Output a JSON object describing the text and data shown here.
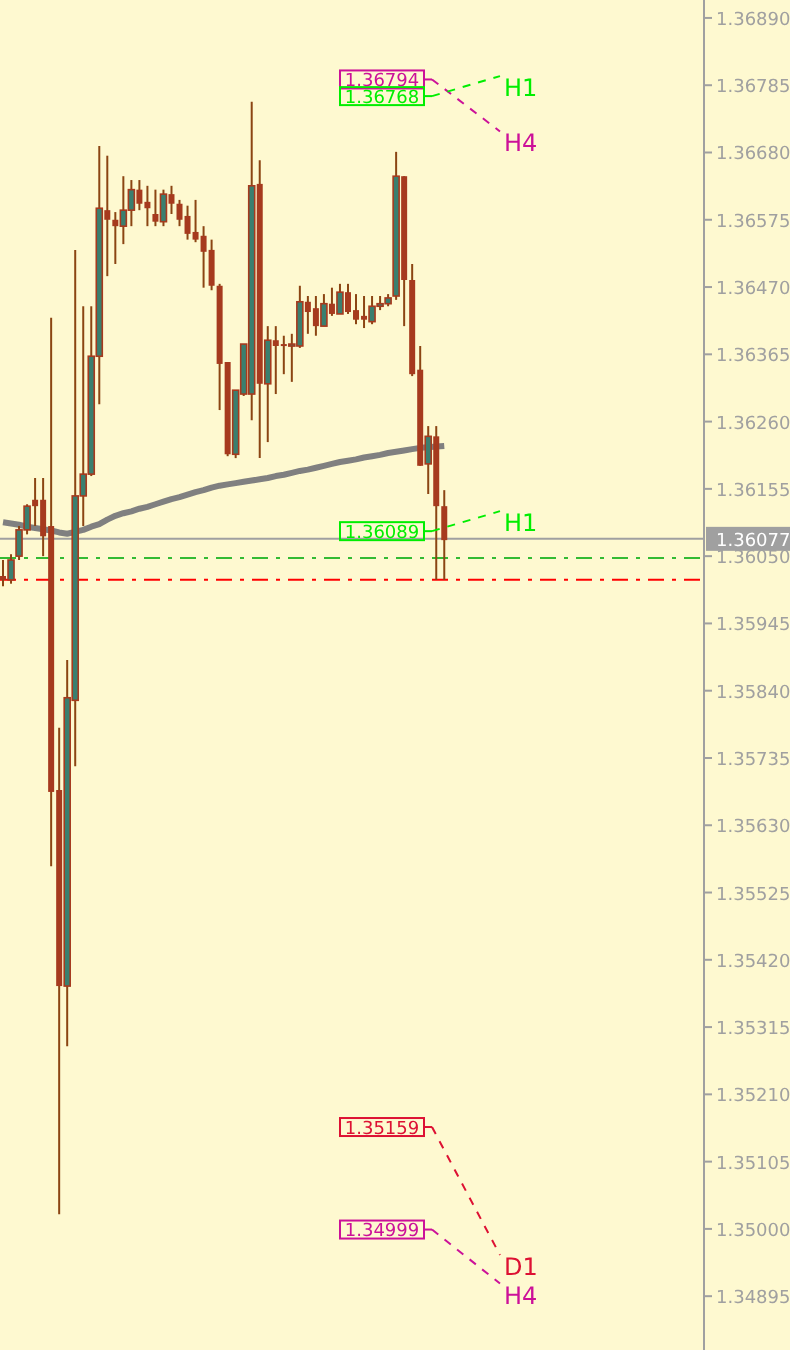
{
  "chart_data": {
    "type": "candlestick",
    "categories": [
      null,
      null,
      null,
      null,
      null,
      null,
      null,
      null,
      null,
      null,
      null,
      null,
      null,
      null,
      null,
      null,
      null,
      null,
      null,
      null,
      null,
      null,
      null,
      null,
      null,
      null,
      null,
      null,
      null,
      null,
      null,
      null,
      null,
      null,
      null,
      null,
      null,
      null,
      null,
      null,
      null,
      null,
      null,
      null,
      null,
      null,
      null,
      null,
      null,
      null,
      null,
      null,
      null,
      null,
      null,
      null,
      null,
      null,
      null,
      null,
      null,
      null,
      null,
      null,
      null,
      null,
      null,
      null,
      null,
      null,
      null,
      null,
      null,
      null,
      null,
      null,
      null,
      null,
      null,
      null,
      null,
      null,
      null,
      null,
      null,
      null,
      null,
      null
    ],
    "ohlc": [
      [
        1.36019,
        1.36044,
        1.36003,
        1.36013
      ],
      [
        1.36013,
        1.36053,
        1.36007,
        1.36044
      ],
      [
        1.3605,
        1.36097,
        1.36044,
        1.36091
      ],
      [
        1.36091,
        1.36131,
        1.36084,
        1.36128
      ],
      [
        1.36138,
        1.36172,
        1.36097,
        1.36128
      ],
      [
        1.36138,
        1.36172,
        1.3605,
        1.36081
      ],
      [
        1.36097,
        1.36422,
        1.35566,
        1.35682
      ],
      [
        1.35685,
        1.35782,
        1.35023,
        1.35379
      ],
      [
        1.35379,
        1.35888,
        1.35285,
        1.35829
      ],
      [
        1.35825,
        1.36528,
        1.35722,
        1.36144
      ],
      [
        1.36144,
        1.3644,
        1.36097,
        1.36178
      ],
      [
        1.36178,
        1.3644,
        1.36175,
        1.36362
      ],
      [
        1.36362,
        1.3669,
        1.36287,
        1.36593
      ],
      [
        1.3659,
        1.36675,
        1.36487,
        1.36575
      ],
      [
        1.36575,
        1.36587,
        1.36506,
        1.36565
      ],
      [
        1.36565,
        1.36643,
        1.36537,
        1.3659
      ],
      [
        1.3659,
        1.36637,
        1.36565,
        1.36622
      ],
      [
        1.36622,
        1.36637,
        1.3659,
        1.366
      ],
      [
        1.36603,
        1.36628,
        1.36565,
        1.36593
      ],
      [
        1.36584,
        1.36622,
        1.36565,
        1.36572
      ],
      [
        1.36572,
        1.36622,
        1.36565,
        1.36615
      ],
      [
        1.36615,
        1.36628,
        1.36584,
        1.366
      ],
      [
        1.366,
        1.36606,
        1.36565,
        1.36575
      ],
      [
        1.36581,
        1.36597,
        1.36544,
        1.36553
      ],
      [
        1.36556,
        1.36606,
        1.3654,
        1.36544
      ],
      [
        1.3655,
        1.36565,
        1.36469,
        1.36525
      ],
      [
        1.36528,
        1.36544,
        1.36465,
        1.36472
      ],
      [
        1.36472,
        1.36475,
        1.36278,
        1.3635
      ],
      [
        1.36353,
        1.36353,
        1.36206,
        1.36209
      ],
      [
        1.36209,
        1.36309,
        1.36203,
        1.36309
      ],
      [
        1.36303,
        1.36381,
        1.363,
        1.36381
      ],
      [
        1.36303,
        1.36759,
        1.36262,
        1.36628
      ],
      [
        1.36631,
        1.36668,
        1.36203,
        1.36319
      ],
      [
        1.36319,
        1.36409,
        1.36228,
        1.36387
      ],
      [
        1.36387,
        1.36409,
        1.36303,
        1.36378
      ],
      [
        1.36381,
        1.36394,
        1.36334,
        1.36378
      ],
      [
        1.36378,
        1.36397,
        1.36322,
        1.36381
      ],
      [
        1.36378,
        1.36472,
        1.36375,
        1.36447
      ],
      [
        1.36447,
        1.36456,
        1.36397,
        1.36431
      ],
      [
        1.36437,
        1.36456,
        1.36394,
        1.36409
      ],
      [
        1.36409,
        1.36459,
        1.36409,
        1.36444
      ],
      [
        1.36444,
        1.36469,
        1.36425,
        1.36428
      ],
      [
        1.36428,
        1.36475,
        1.36428,
        1.36462
      ],
      [
        1.36462,
        1.36475,
        1.36428,
        1.36431
      ],
      [
        1.36434,
        1.36459,
        1.36412,
        1.36419
      ],
      [
        1.36425,
        1.36456,
        1.36406,
        1.36419
      ],
      [
        1.36416,
        1.36456,
        1.36412,
        1.3644
      ],
      [
        1.3644,
        1.36456,
        1.36434,
        1.36444
      ],
      [
        1.36444,
        1.36459,
        1.3644,
        1.36453
      ],
      [
        1.36456,
        1.36681,
        1.3645,
        1.36643
      ],
      [
        1.36643,
        1.36643,
        1.36409,
        1.36481
      ],
      [
        1.36481,
        1.36506,
        1.36331,
        1.36334
      ],
      [
        1.36341,
        1.36378,
        1.36191,
        1.36191
      ],
      [
        1.36194,
        1.36253,
        1.36147,
        1.36237
      ],
      [
        1.36237,
        1.36253,
        1.36013,
        1.36128
      ],
      [
        1.36128,
        1.36153,
        1.36013,
        1.36075
      ],
      null,
      null,
      null,
      null,
      null,
      null,
      null,
      null,
      null,
      null,
      null,
      null,
      null,
      null,
      null,
      null,
      null,
      null,
      null,
      null,
      null,
      null,
      null,
      null,
      null,
      null,
      null,
      null,
      null,
      null,
      null,
      null
    ],
    "series": [
      {
        "type": "line",
        "color": "#808080",
        "values": [
          1.36103,
          1.36101,
          1.36099,
          1.36096,
          1.36094,
          1.36092,
          1.3609,
          1.36087,
          1.36085,
          1.36088,
          1.36091,
          1.36096,
          1.361,
          1.36107,
          1.36113,
          1.36117,
          1.3612,
          1.36124,
          1.36127,
          1.36131,
          1.36135,
          1.36139,
          1.36142,
          1.36146,
          1.3615,
          1.36153,
          1.36157,
          1.3616,
          1.36162,
          1.36164,
          1.36166,
          1.36168,
          1.3617,
          1.36172,
          1.36175,
          1.36177,
          1.3618,
          1.36183,
          1.36185,
          1.36188,
          1.36191,
          1.36194,
          1.36197,
          1.36199,
          1.36201,
          1.36204,
          1.36206,
          1.36208,
          1.36211,
          1.36213,
          1.36215,
          1.36217,
          1.36219,
          1.3622,
          1.36221,
          1.36222,
          null,
          null,
          null,
          null,
          null,
          null,
          null,
          null,
          null,
          null,
          null,
          null,
          null,
          null,
          null,
          null,
          null,
          null,
          null,
          null,
          null,
          null,
          null,
          null,
          null,
          null,
          null,
          null,
          null,
          null,
          null,
          null
        ]
      }
    ],
    "ylim": [
      1.34811,
      1.36918
    ],
    "yticks": [
      {
        "value": 1.3689,
        "label": "1.36890"
      },
      {
        "value": 1.36785,
        "label": "1.36785"
      },
      {
        "value": 1.3668,
        "label": "1.36680"
      },
      {
        "value": 1.36575,
        "label": "1.36575"
      },
      {
        "value": 1.3647,
        "label": "1.36470"
      },
      {
        "value": 1.36365,
        "label": "1.36365"
      },
      {
        "value": 1.3626,
        "label": "1.36260"
      },
      {
        "value": 1.36155,
        "label": "1.36155"
      },
      {
        "value": 1.3605,
        "label": "1.36050"
      },
      {
        "value": 1.35945,
        "label": "1.35945"
      },
      {
        "value": 1.3584,
        "label": "1.35840"
      },
      {
        "value": 1.35735,
        "label": "1.35735"
      },
      {
        "value": 1.3563,
        "label": "1.35630"
      },
      {
        "value": 1.35525,
        "label": "1.35525"
      },
      {
        "value": 1.3542,
        "label": "1.35420"
      },
      {
        "value": 1.35315,
        "label": "1.35315"
      },
      {
        "value": 1.3521,
        "label": "1.35210"
      },
      {
        "value": 1.35105,
        "label": "1.35105"
      },
      {
        "value": 1.35,
        "label": "1.35000"
      },
      {
        "value": 1.34895,
        "label": "1.34895"
      }
    ],
    "tick_labels": "y",
    "ref_lines": [
      {
        "axis": "y",
        "value": 1.36077,
        "label": "1.36077",
        "color": "#a0a0a0",
        "line_style": "solid"
      },
      {
        "axis": "y",
        "value": 1.36047,
        "color": "#33bb33",
        "line_style": "dashed"
      },
      {
        "axis": "y",
        "value": 1.36013,
        "color": "#ff0000",
        "line_style": "dashed"
      },
      {
        "axis": "y",
        "value": 1.36794,
        "label": "1.36794",
        "color": "#cc1199"
      },
      {
        "axis": "y",
        "value": 1.36768,
        "label": "1.36768",
        "color": "#00ee00"
      },
      {
        "axis": "y",
        "value": 1.36089,
        "label": "1.36089",
        "color": "#00ee00"
      },
      {
        "axis": "y",
        "value": 1.35159,
        "label": "1.35159",
        "color": "#dd1133"
      },
      {
        "axis": "y",
        "value": 1.34999,
        "label": "1.34999",
        "color": "#cc1199"
      }
    ],
    "annotations": [
      "H4",
      "H1",
      "H1",
      "D1",
      "H4"
    ]
  }
}
